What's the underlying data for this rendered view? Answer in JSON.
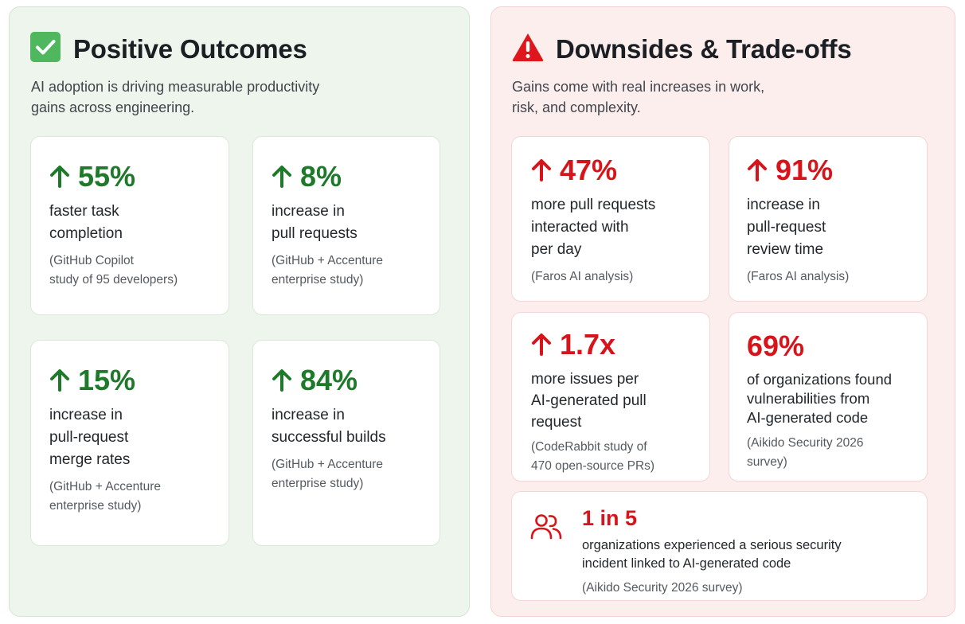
{
  "positive": {
    "title": "Positive Outcomes",
    "icon": "check-box-icon",
    "accent": "#1e7a2a",
    "subtitle": "AI adoption is driving measurable productivity\ngains across engineering.",
    "cards": [
      {
        "metric": "55%",
        "desc": "faster task\ncompletion",
        "source": "(GitHub Copilot\nstudy of 95 developers)"
      },
      {
        "metric": "8%",
        "desc": "increase in\npull requests",
        "source": "(GitHub + Accenture\nenterprise study)"
      },
      {
        "metric": "15%",
        "desc": "increase in\npull-request\nmerge rates",
        "source": "(GitHub + Accenture\nenterprise study)"
      },
      {
        "metric": "84%",
        "desc": "increase in\nsuccessful builds",
        "source": "(GitHub + Accenture\nenterprise study)"
      }
    ]
  },
  "negative": {
    "title": "Downsides & Trade-offs",
    "icon": "warning-triangle-icon",
    "accent": "#d8141b",
    "subtitle": "Gains come with real increases in work,\nrisk, and complexity.",
    "cards": [
      {
        "metric": "47%",
        "desc": "more pull requests\ninteracted with\nper day",
        "source": "(Faros AI analysis)"
      },
      {
        "metric": "91%",
        "desc": "increase in\npull-request\nreview time",
        "source": "(Faros AI analysis)"
      },
      {
        "metric": "1.7x",
        "desc": "more issues per\nAI-generated pull\nrequest",
        "source": "(CodeRabbit study of\n470 open-source PRs)"
      },
      {
        "metric": "69%",
        "desc": "of organizations found\nvulnerabilities from\nAI-generated code",
        "source": "(Aikido Security 2026\nsurvey)"
      }
    ],
    "wide_card": {
      "icon": "people-icon",
      "metric": "1 in 5",
      "desc": "organizations experienced a serious security\nincident linked to AI-generated code",
      "source": "(Aikido Security 2026 survey)"
    }
  }
}
